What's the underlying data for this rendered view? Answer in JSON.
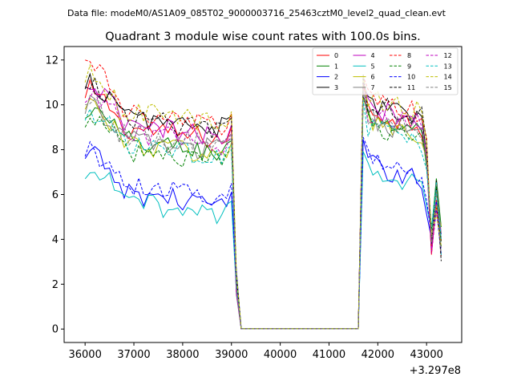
{
  "chart_data": {
    "type": "line",
    "suptitle": "Data file: modeM0/AS1A09_085T02_9000003716_25463cztM0_level2_quad_clean.evt",
    "title": "Quadrant 3 module wise count rates with 100.0s bins.",
    "xlabel": "",
    "ylabel": "",
    "x_offset_label": "+3.297e8",
    "xlim": [
      35570,
      43720
    ],
    "ylim": [
      -0.6,
      12.6
    ],
    "x_ticks": [
      36000,
      37000,
      38000,
      39000,
      40000,
      41000,
      42000,
      43000
    ],
    "x_tick_labels": [
      "36000",
      "37000",
      "38000",
      "39000",
      "40000",
      "41000",
      "42000",
      "43000"
    ],
    "y_ticks": [
      0,
      2,
      4,
      6,
      8,
      10,
      12
    ],
    "y_tick_labels": [
      "0",
      "2",
      "4",
      "6",
      "8",
      "10",
      "12"
    ],
    "legend_location": "top-right",
    "legend_columns": 4,
    "series": [
      {
        "name": "0",
        "color": "#ff0000",
        "dash": "solid",
        "base": 9.2,
        "level2": 9.0,
        "start": 10.3
      },
      {
        "name": "1",
        "color": "#008000",
        "dash": "solid",
        "base": 8.6,
        "level2": 8.7,
        "start": 9.4
      },
      {
        "name": "2",
        "color": "#0000ff",
        "dash": "solid",
        "base": 6.3,
        "level2": 6.6,
        "start": 7.6
      },
      {
        "name": "3",
        "color": "#000000",
        "dash": "solid",
        "base": 9.7,
        "level2": 9.3,
        "start": 10.7
      },
      {
        "name": "4",
        "color": "#bf00bf",
        "dash": "solid",
        "base": 9.3,
        "level2": 9.2,
        "start": 10.8
      },
      {
        "name": "5",
        "color": "#00bfbf",
        "dash": "solid",
        "base": 5.9,
        "level2": 6.3,
        "start": 6.7
      },
      {
        "name": "6",
        "color": "#bfbf00",
        "dash": "solid",
        "base": 8.5,
        "level2": 8.5,
        "start": 9.8
      },
      {
        "name": "7",
        "color": "#808080",
        "dash": "solid",
        "base": 8.7,
        "level2": 8.6,
        "start": 9.6
      },
      {
        "name": "8",
        "color": "#ff0000",
        "dash": "dashed",
        "base": 9.8,
        "level2": 9.5,
        "start": 12.0
      },
      {
        "name": "9",
        "color": "#008000",
        "dash": "dashed",
        "base": 8.2,
        "level2": 8.4,
        "start": 9.0
      },
      {
        "name": "10",
        "color": "#0000ff",
        "dash": "dashed",
        "base": 6.7,
        "level2": 6.8,
        "start": 7.7
      },
      {
        "name": "11",
        "color": "#000000",
        "dash": "dashed",
        "base": 9.6,
        "level2": 9.4,
        "start": 10.8
      },
      {
        "name": "12",
        "color": "#bf00bf",
        "dash": "dashed",
        "base": 9.0,
        "level2": 9.0,
        "start": 10.1
      },
      {
        "name": "13",
        "color": "#00bfbf",
        "dash": "dashed",
        "base": 8.4,
        "level2": 8.3,
        "start": 9.3
      },
      {
        "name": "14",
        "color": "#bfbf00",
        "dash": "dashed",
        "base": 9.9,
        "level2": 9.6,
        "start": 11.0
      },
      {
        "name": "15",
        "color": "#808080",
        "dash": "dashed",
        "base": 8.9,
        "level2": 8.8,
        "start": 10.0
      }
    ],
    "time_bins": {
      "start": 36000,
      "step": 100,
      "data_end_1": 39000,
      "gap_start": 39200,
      "gap_end": 41600,
      "data_start_2": 41700,
      "end": 43300
    }
  }
}
